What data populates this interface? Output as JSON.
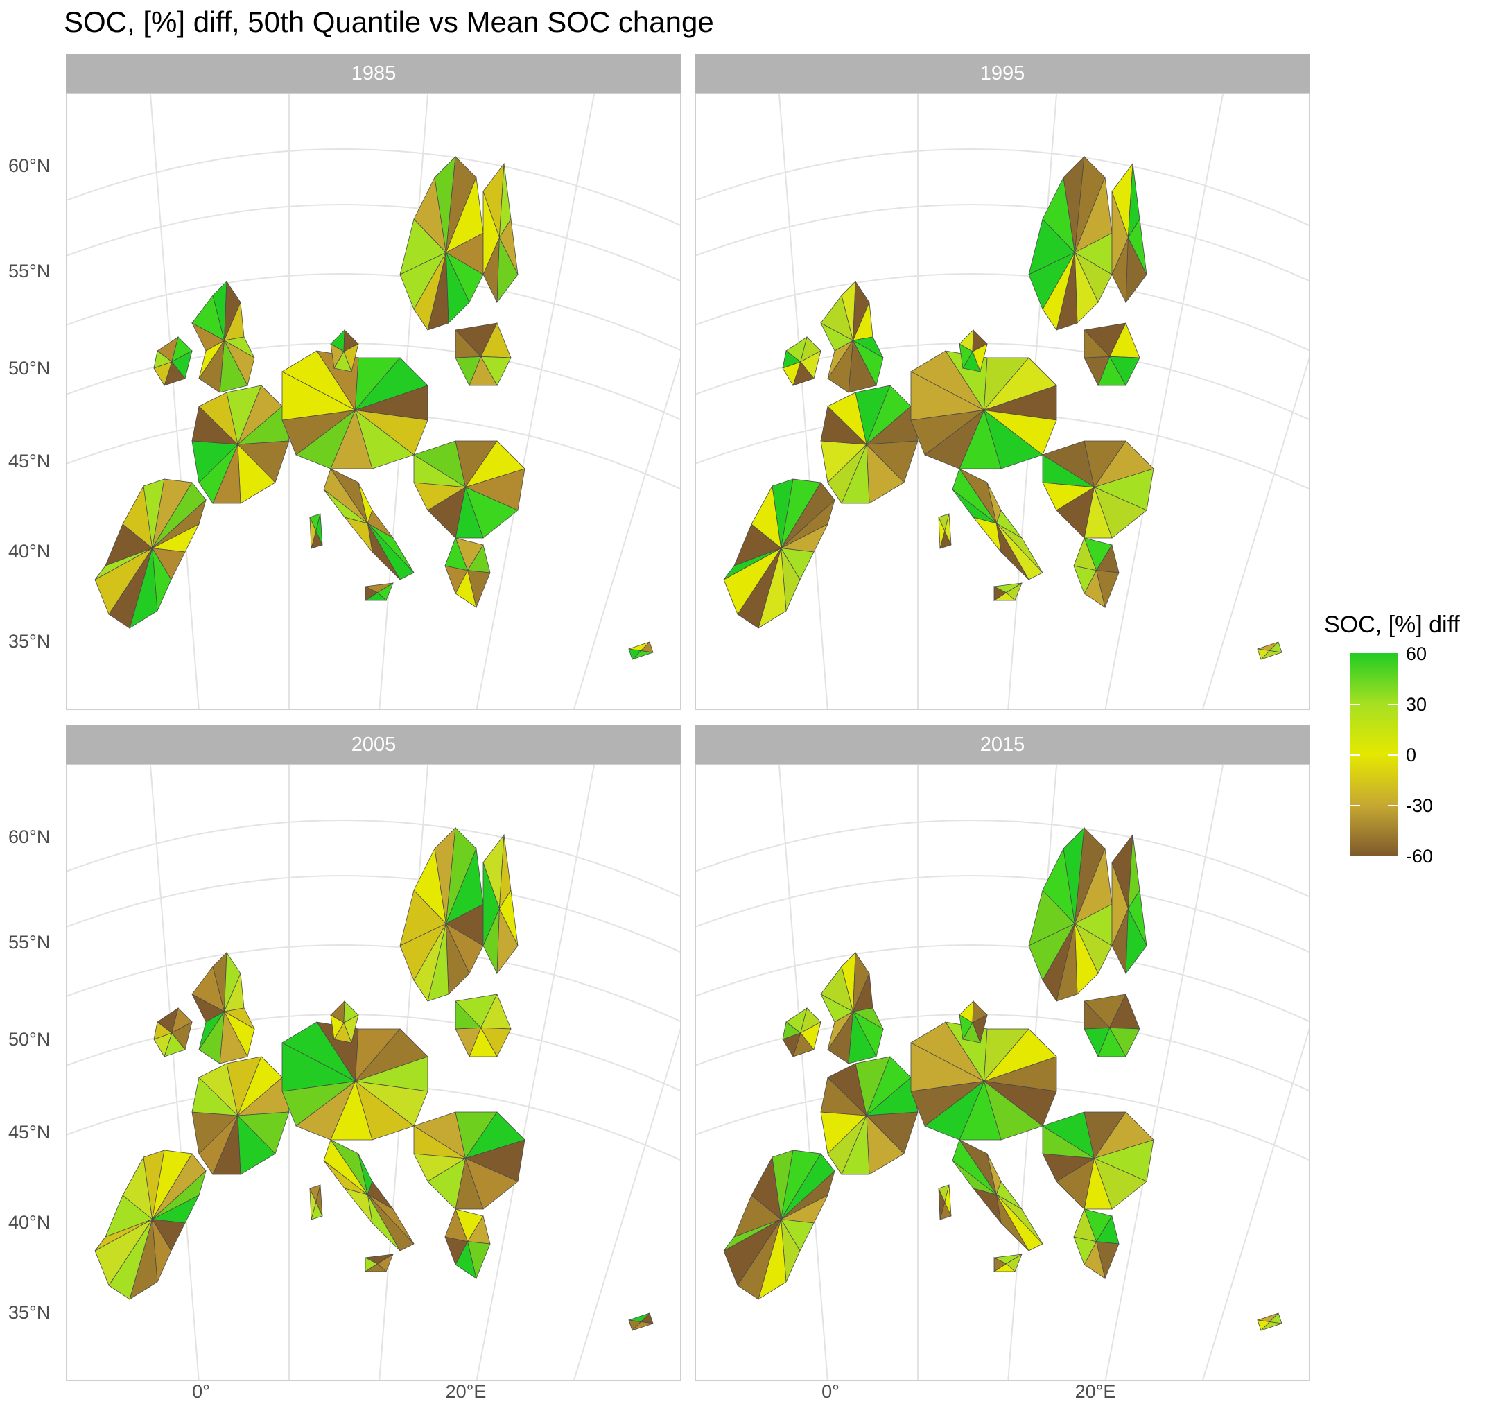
{
  "title": "SOC, [%] diff, 50th Quantile vs Mean SOC change",
  "panels": [
    {
      "label": "1985",
      "palette": [
        "#7f5a2c",
        "#c6a932",
        "#e5e800",
        "#22cc22",
        "#a6e022",
        "#9c7a2e",
        "#3cd61e",
        "#d3c21a",
        "#6fcf1e",
        "#b28a30"
      ]
    },
    {
      "label": "1995",
      "palette": [
        "#a6e022",
        "#7f5a2c",
        "#3cd61e",
        "#c6a932",
        "#d8e41a",
        "#22cc22",
        "#9c7a2e",
        "#b5d822",
        "#e5e800",
        "#8a6a2e"
      ]
    },
    {
      "label": "2005",
      "palette": [
        "#c6a932",
        "#7f5a2c",
        "#a6e022",
        "#e5e800",
        "#22cc22",
        "#9c7a2e",
        "#d3c21a",
        "#6fcf1e",
        "#b28a30",
        "#c8de22"
      ]
    },
    {
      "label": "2015",
      "palette": [
        "#7f5a2c",
        "#22cc22",
        "#a6e022",
        "#9c7a2e",
        "#3cd61e",
        "#c6a932",
        "#e5e800",
        "#6fcf1e",
        "#8a6a2e",
        "#b5d822"
      ]
    }
  ],
  "axes": {
    "y_ticks": [
      "60°N",
      "55°N",
      "50°N",
      "45°N",
      "40°N",
      "35°N"
    ],
    "x_ticks": [
      "0°",
      "20°E"
    ]
  },
  "legend": {
    "title": "SOC, [%] diff",
    "ticks": [
      "60",
      "30",
      "0",
      "-30",
      "-60"
    ],
    "colors": {
      "high": "#22cc22",
      "mid_high": "#a6e022",
      "zero": "#e5e800",
      "mid_low": "#c6a932",
      "low": "#7f5a2c"
    }
  }
}
